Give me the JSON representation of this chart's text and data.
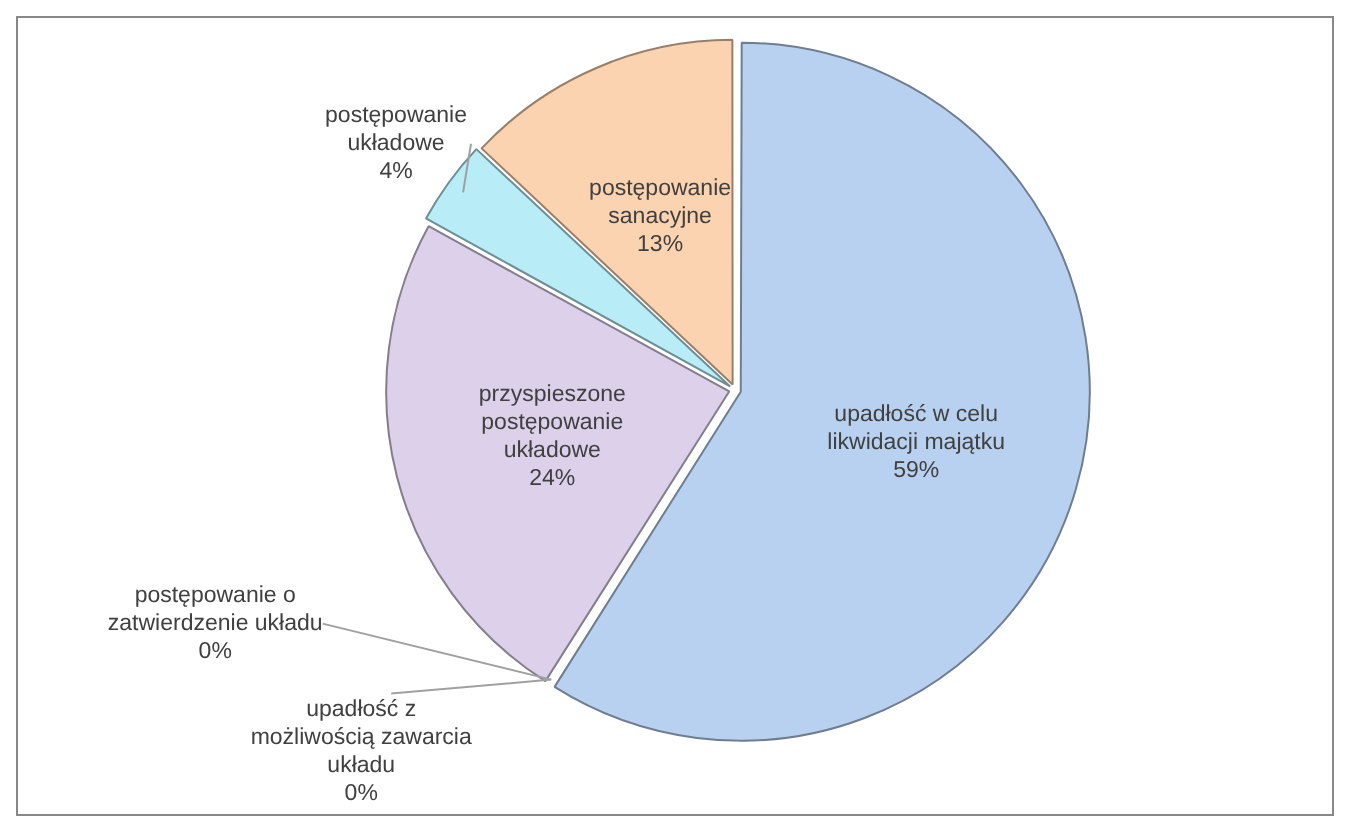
{
  "chart_data": {
    "type": "pie",
    "categories": [
      "upadłość w celu likwidacji majątku",
      "upadłość z możliwością zawarcia układu",
      "postępowanie o zatwierdzenie układu",
      "przyspieszone postępowanie układowe",
      "postępowanie układowe",
      "postępowanie sanacyjne"
    ],
    "values": [
      59,
      0,
      0,
      24,
      4,
      13
    ],
    "colors": [
      "#b9d1f0",
      "#a9d96f",
      "#c0c0c0",
      "#dcd0ea",
      "#b8ecf7",
      "#fcd3b0"
    ],
    "value_labels": [
      "59%",
      "0%",
      "0%",
      "24%",
      "4%",
      "13%"
    ],
    "legend": false
  }
}
